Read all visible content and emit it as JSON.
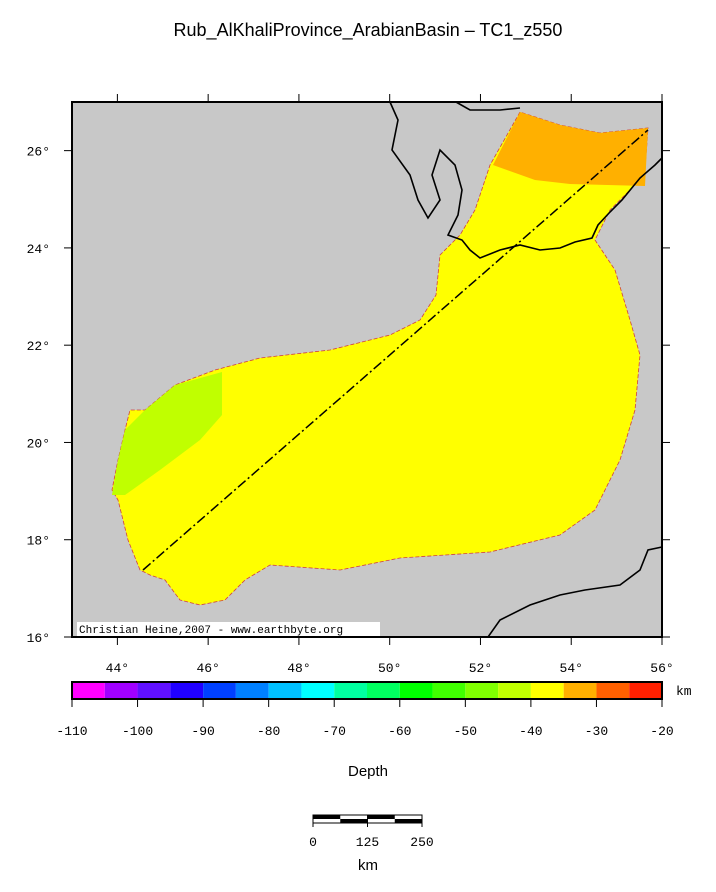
{
  "title": "Rub_AlKhaliProvince_ArabianBasin – TC1_z550",
  "credit": "Christian Heine,2007 - www.earthbyte.org",
  "map": {
    "lonlim": [
      43,
      56
    ],
    "latlim": [
      16,
      27
    ],
    "lon_ticks": [
      {
        "value": 44,
        "label": "44°"
      },
      {
        "value": 46,
        "label": "46°"
      },
      {
        "value": 48,
        "label": "48°"
      },
      {
        "value": 50,
        "label": "50°"
      },
      {
        "value": 52,
        "label": "52°"
      },
      {
        "value": 54,
        "label": "54°"
      },
      {
        "value": 56,
        "label": "56°"
      }
    ],
    "lat_ticks": [
      {
        "value": 16,
        "label": "16°"
      },
      {
        "value": 18,
        "label": "18°"
      },
      {
        "value": 20,
        "label": "20°"
      },
      {
        "value": 22,
        "label": "22°"
      },
      {
        "value": 24,
        "label": "24°"
      },
      {
        "value": 26,
        "label": "26°"
      }
    ]
  },
  "colorbar": {
    "label": "Depth",
    "unit": "km",
    "boundaries": [
      -110,
      -105,
      -100,
      -95,
      -90,
      -85,
      -80,
      -75,
      -70,
      -65,
      -60,
      -55,
      -50,
      -45,
      -40,
      -35,
      -30,
      -25,
      -20
    ],
    "colors": [
      "#ff00ff",
      "#a000ff",
      "#6010ff",
      "#2000ff",
      "#0040ff",
      "#0080ff",
      "#00c0ff",
      "#00ffff",
      "#00ffa0",
      "#00ff60",
      "#00ff00",
      "#40ff00",
      "#80ff00",
      "#c0ff00",
      "#ffff00",
      "#ffb000",
      "#ff6000",
      "#ff2000"
    ],
    "ticks": [
      -110,
      -100,
      -90,
      -80,
      -70,
      -60,
      -50,
      -40,
      -30,
      -20
    ]
  },
  "scalebar": {
    "ticks": [
      0,
      125,
      250
    ],
    "unit": "km"
  }
}
